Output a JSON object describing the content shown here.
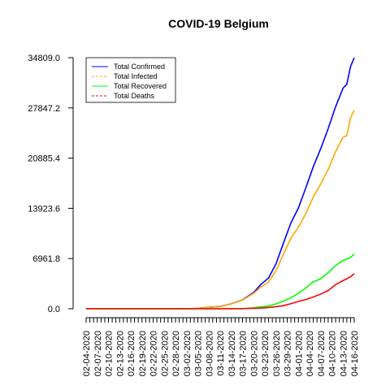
{
  "chart_data": {
    "type": "line",
    "title": "COVID-19 Belgium",
    "xlabel": "",
    "ylabel": "",
    "ylim": [
      0,
      34809.0
    ],
    "yticks": [
      "0.0",
      "6961.8",
      "13923.6",
      "20885.4",
      "27847.2",
      "34809.0"
    ],
    "x_start": "02-04-2020",
    "x_end": "04-16-2020",
    "x_tick_labels": [
      "02-04-2020",
      "02-07-2020",
      "02-10-2020",
      "02-13-2020",
      "02-16-2020",
      "02-19-2020",
      "02-22-2020",
      "02-25-2020",
      "02-28-2020",
      "03-02-2020",
      "03-05-2020",
      "03-08-2020",
      "03-11-2020",
      "03-14-2020",
      "03-17-2020",
      "03-20-2020",
      "03-23-2020",
      "03-26-2020",
      "03-29-2020",
      "04-01-2020",
      "04-04-2020",
      "04-07-2020",
      "04-10-2020",
      "04-13-2020",
      "04-16-2020"
    ],
    "grid": false,
    "legend_position": "top-left",
    "series": [
      {
        "name": "Total Confirmed",
        "color": "#0000ff",
        "dash": "solid",
        "points": [
          [
            "02-04-2020",
            0
          ],
          [
            "02-28-2020",
            0
          ],
          [
            "03-01-2020",
            2
          ],
          [
            "03-04-2020",
            23
          ],
          [
            "03-08-2020",
            200
          ],
          [
            "03-11-2020",
            314
          ],
          [
            "03-14-2020",
            689
          ],
          [
            "03-17-2020",
            1243
          ],
          [
            "03-20-2020",
            2257
          ],
          [
            "03-22-2020",
            3401
          ],
          [
            "03-24-2020",
            4269
          ],
          [
            "03-26-2020",
            6235
          ],
          [
            "03-28-2020",
            9134
          ],
          [
            "03-30-2020",
            11899
          ],
          [
            "04-01-2020",
            13964
          ],
          [
            "04-03-2020",
            16770
          ],
          [
            "04-05-2020",
            19691
          ],
          [
            "04-07-2020",
            22194
          ],
          [
            "04-09-2020",
            24983
          ],
          [
            "04-11-2020",
            28018
          ],
          [
            "04-13-2020",
            30589
          ],
          [
            "04-14-2020",
            31119
          ],
          [
            "04-15-2020",
            33573
          ],
          [
            "04-16-2020",
            34809
          ]
        ]
      },
      {
        "name": "Total Infected",
        "color": "#ffa500",
        "dash": "dashed",
        "points": [
          [
            "02-04-2020",
            0
          ],
          [
            "02-28-2020",
            0
          ],
          [
            "03-01-2020",
            2
          ],
          [
            "03-04-2020",
            23
          ],
          [
            "03-08-2020",
            198
          ],
          [
            "03-11-2020",
            310
          ],
          [
            "03-14-2020",
            680
          ],
          [
            "03-17-2020",
            1220
          ],
          [
            "03-20-2020",
            2150
          ],
          [
            "03-22-2020",
            3020
          ],
          [
            "03-24-2020",
            3720
          ],
          [
            "03-26-2020",
            5300
          ],
          [
            "03-28-2020",
            7600
          ],
          [
            "03-30-2020",
            9800
          ],
          [
            "04-01-2020",
            11300
          ],
          [
            "04-03-2020",
            13200
          ],
          [
            "04-05-2020",
            15500
          ],
          [
            "04-07-2020",
            17300
          ],
          [
            "04-09-2020",
            19300
          ],
          [
            "04-11-2020",
            21800
          ],
          [
            "04-13-2020",
            23800
          ],
          [
            "04-14-2020",
            24000
          ],
          [
            "04-15-2020",
            26500
          ],
          [
            "04-16-2020",
            27500
          ]
        ]
      },
      {
        "name": "Total Recovered",
        "color": "#00ff00",
        "dash": "solid",
        "points": [
          [
            "02-04-2020",
            0
          ],
          [
            "03-17-2020",
            0
          ],
          [
            "03-20-2020",
            140
          ],
          [
            "03-22-2020",
            263
          ],
          [
            "03-24-2020",
            401
          ],
          [
            "03-26-2020",
            675
          ],
          [
            "03-28-2020",
            1050
          ],
          [
            "03-30-2020",
            1530
          ],
          [
            "04-01-2020",
            2132
          ],
          [
            "04-03-2020",
            2872
          ],
          [
            "04-05-2020",
            3751
          ],
          [
            "04-07-2020",
            4157
          ],
          [
            "04-09-2020",
            4995
          ],
          [
            "04-11-2020",
            5986
          ],
          [
            "04-13-2020",
            6707
          ],
          [
            "04-14-2020",
            6868
          ],
          [
            "04-15-2020",
            7107
          ],
          [
            "04-16-2020",
            7562
          ]
        ]
      },
      {
        "name": "Total Deaths",
        "color": "#ff0000",
        "dash": "dashed",
        "points": [
          [
            "02-04-2020",
            0
          ],
          [
            "03-10-2020",
            0
          ],
          [
            "03-14-2020",
            4
          ],
          [
            "03-17-2020",
            14
          ],
          [
            "03-20-2020",
            67
          ],
          [
            "03-22-2020",
            88
          ],
          [
            "03-24-2020",
            178
          ],
          [
            "03-26-2020",
            289
          ],
          [
            "03-28-2020",
            431
          ],
          [
            "03-30-2020",
            705
          ],
          [
            "04-01-2020",
            1011
          ],
          [
            "04-03-2020",
            1283
          ],
          [
            "04-05-2020",
            1632
          ],
          [
            "04-07-2020",
            2035
          ],
          [
            "04-09-2020",
            2523
          ],
          [
            "04-11-2020",
            3346
          ],
          [
            "04-13-2020",
            3903
          ],
          [
            "04-14-2020",
            4157
          ],
          [
            "04-15-2020",
            4440
          ],
          [
            "04-16-2020",
            4857
          ]
        ]
      }
    ]
  }
}
